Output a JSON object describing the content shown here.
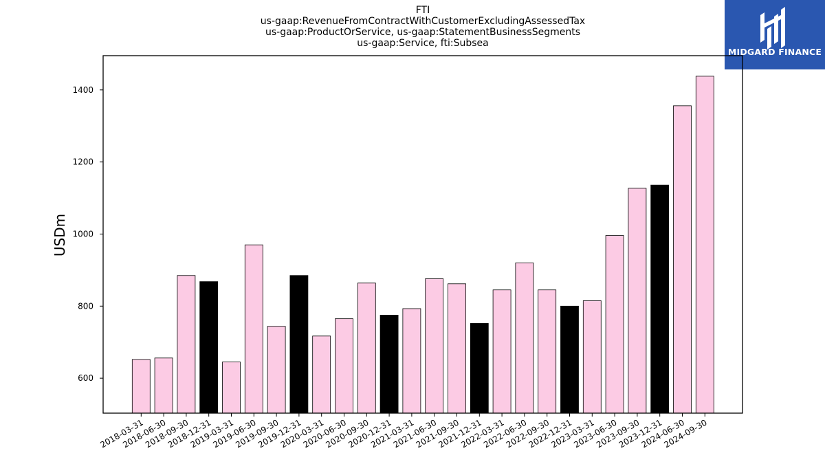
{
  "title_lines": [
    "FTI",
    "us-gaap:RevenueFromContractWithCustomerExcludingAssessedTax",
    "us-gaap:ProductOrService, us-gaap:StatementBusinessSegments",
    "us-gaap:Service, fti:Subsea"
  ],
  "logo": {
    "text": "MIDGARD FINANCE",
    "background": "#2a57b0"
  },
  "chart_data": {
    "type": "bar",
    "title": "FTI\nus-gaap:RevenueFromContractWithCustomerExcludingAssessedTax\nus-gaap:ProductOrService, us-gaap:StatementBusinessSegments\nus-gaap:Service, fti:Subsea",
    "xlabel": "",
    "ylabel": "USDm",
    "ylim": [
      503,
      1495
    ],
    "yticks": [
      600,
      800,
      1000,
      1200,
      1400
    ],
    "grid": false,
    "legend": "none",
    "colors": {
      "quarter": "#fccbe4",
      "year_end": "#000000",
      "edge": "#000000"
    },
    "categories": [
      "2018-03-31",
      "2018-06-30",
      "2018-09-30",
      "2018-12-31",
      "2019-03-31",
      "2019-06-30",
      "2019-09-30",
      "2019-12-31",
      "2020-03-31",
      "2020-06-30",
      "2020-09-30",
      "2020-12-31",
      "2021-03-31",
      "2021-06-30",
      "2021-09-30",
      "2021-12-31",
      "2022-03-31",
      "2022-06-30",
      "2022-09-30",
      "2022-12-31",
      "2023-03-31",
      "2023-06-30",
      "2023-09-30",
      "2023-12-31",
      "2024-06-30",
      "2024-09-30"
    ],
    "values": [
      652,
      656,
      885,
      868,
      645,
      970,
      744,
      885,
      717,
      765,
      864,
      775,
      793,
      876,
      862,
      752,
      845,
      920,
      845,
      800,
      815,
      996,
      1127,
      1136,
      1356,
      1438
    ],
    "year_end": [
      false,
      false,
      false,
      true,
      false,
      false,
      false,
      true,
      false,
      false,
      false,
      true,
      false,
      false,
      false,
      true,
      false,
      false,
      false,
      true,
      false,
      false,
      false,
      true,
      false,
      false
    ]
  }
}
